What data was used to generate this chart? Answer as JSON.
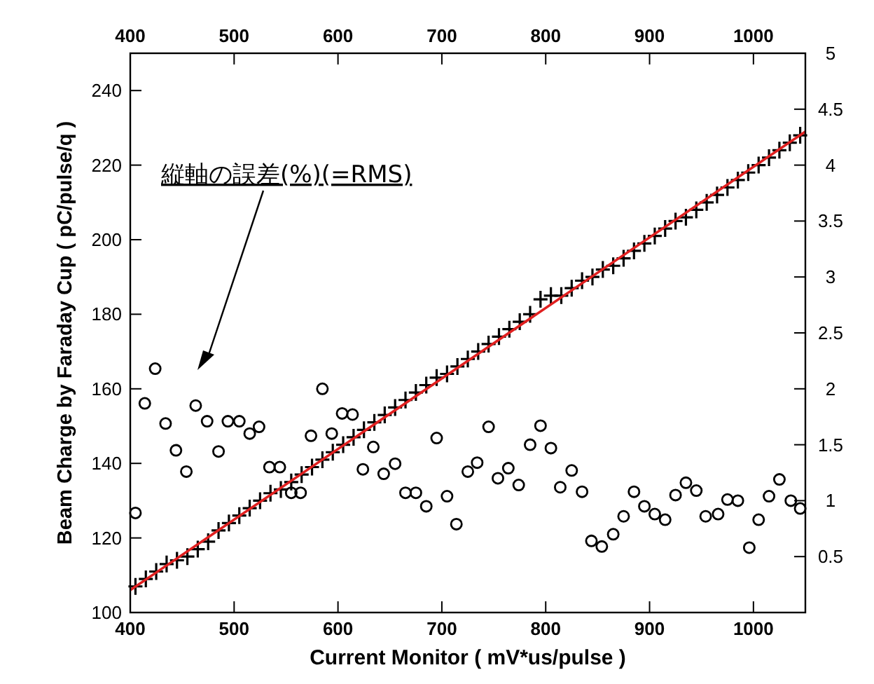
{
  "chart_data": {
    "type": "scatter",
    "xlabel": "Current Monitor ( mV*us/pulse )",
    "ylabel": "Beam Charge by Faraday Cup ( pC/pulse/q )",
    "annotations": [
      "縦軸の誤差(%)(=RMS)"
    ],
    "xlim": [
      400,
      1050
    ],
    "xticks": [
      400,
      500,
      600,
      700,
      800,
      900,
      1000
    ],
    "x2lim": [
      400,
      1050
    ],
    "x2ticks": [
      400,
      500,
      600,
      700,
      800,
      900,
      1000
    ],
    "ylim": [
      100,
      250
    ],
    "yticks": [
      100,
      120,
      140,
      160,
      180,
      200,
      220,
      240
    ],
    "y2lim": [
      0,
      5
    ],
    "y2ticks": [
      0.5,
      1,
      1.5,
      2,
      2.5,
      3,
      3.5,
      4,
      4.5,
      5
    ],
    "grid": false,
    "series": [
      {
        "type": "scatter",
        "marker": "cross",
        "color": "#000000",
        "x": [
          405,
          415,
          425,
          435,
          445,
          455,
          465,
          475,
          485,
          495,
          505,
          515,
          525,
          535,
          545,
          555,
          565,
          575,
          585,
          595,
          605,
          615,
          625,
          635,
          645,
          655,
          665,
          675,
          685,
          695,
          705,
          715,
          725,
          735,
          745,
          755,
          765,
          775,
          785,
          795,
          805,
          815,
          825,
          835,
          845,
          855,
          865,
          875,
          885,
          895,
          905,
          915,
          925,
          935,
          945,
          955,
          965,
          975,
          985,
          995,
          1005,
          1015,
          1025,
          1035,
          1045
        ],
        "values": [
          107,
          109,
          111,
          113,
          114,
          115,
          117,
          119,
          122,
          124,
          126,
          128,
          130,
          132,
          133,
          135,
          137,
          139,
          141,
          143,
          145,
          147,
          149,
          151,
          153,
          155,
          157,
          159,
          161,
          163,
          164,
          166,
          168,
          170,
          172,
          174,
          176,
          178,
          180,
          184,
          185,
          185,
          187,
          189,
          190,
          192,
          193,
          195,
          197,
          199,
          201,
          203,
          205,
          206,
          208,
          210,
          212,
          214,
          216,
          218,
          220,
          222,
          224,
          226,
          228
        ]
      },
      {
        "type": "line",
        "marker": "none",
        "line_style": "solid",
        "color": "#e02020",
        "x": [
          400,
          1050
        ],
        "values": [
          106,
          229
        ]
      },
      {
        "type": "scatter",
        "marker": "circle",
        "axis": "y2",
        "color": "#000000",
        "x": [
          405,
          414,
          424,
          434,
          444,
          454,
          463,
          474,
          485,
          494,
          505,
          515,
          524,
          534,
          544,
          555,
          564,
          574,
          585,
          594,
          604,
          614,
          624,
          634,
          644,
          655,
          665,
          675,
          685,
          695,
          705,
          714,
          725,
          734,
          745,
          754,
          764,
          774,
          785,
          795,
          805,
          814,
          825,
          835,
          844,
          854,
          865,
          875,
          885,
          895,
          905,
          915,
          925,
          935,
          945,
          954,
          966,
          975,
          985,
          996,
          1005,
          1015,
          1025,
          1036,
          1045
        ],
        "values": [
          0.89,
          1.87,
          2.18,
          1.69,
          1.45,
          1.26,
          1.85,
          1.71,
          1.44,
          1.71,
          1.71,
          1.6,
          1.66,
          1.3,
          1.3,
          1.07,
          1.07,
          1.58,
          2.0,
          1.6,
          1.78,
          1.77,
          1.28,
          1.48,
          1.24,
          1.33,
          1.07,
          1.07,
          0.95,
          1.56,
          1.04,
          0.79,
          1.26,
          1.34,
          1.66,
          1.2,
          1.29,
          1.14,
          1.5,
          1.67,
          1.47,
          1.12,
          1.27,
          1.08,
          0.64,
          0.59,
          0.7,
          0.86,
          1.08,
          0.95,
          0.88,
          0.83,
          1.05,
          1.16,
          1.09,
          0.86,
          0.88,
          1.01,
          1.0,
          0.58,
          0.83,
          1.04,
          1.19,
          1.0,
          0.93
        ]
      }
    ]
  }
}
